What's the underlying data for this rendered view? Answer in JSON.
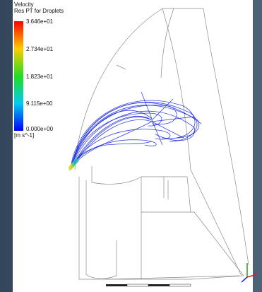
{
  "legend": {
    "title": "Velocity",
    "subtitle": "Res PT for Droplets",
    "ticks": [
      "3.646e+01",
      "2.734e+01",
      "1.823e+01",
      "9.115e+00",
      "0.000e+00"
    ],
    "unit": "[m s^-1]"
  }
}
